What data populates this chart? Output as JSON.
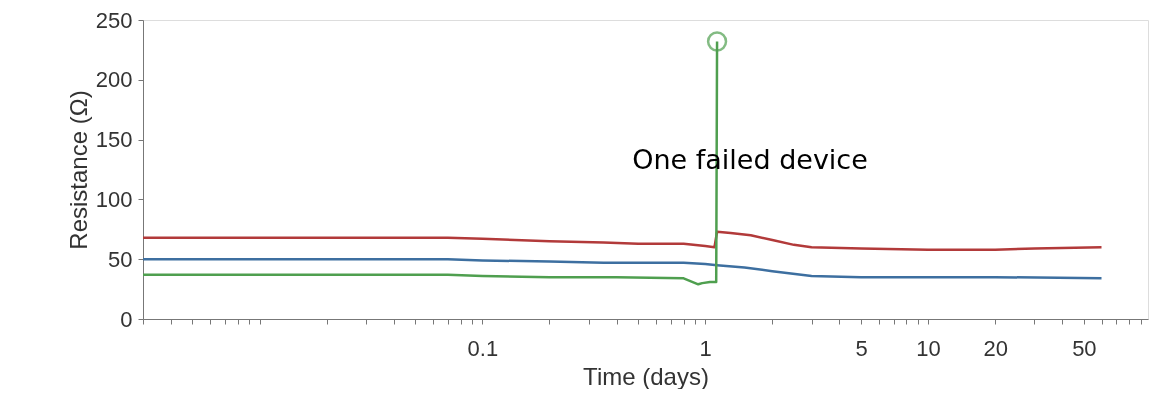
{
  "chart_data": {
    "type": "line",
    "xlabel": "Time (days)",
    "ylabel": "Resistance (Ω)",
    "log": "x",
    "grid": false,
    "legend": false,
    "marker": "none",
    "line_style": "solid",
    "xlim": [
      0.003,
      97
    ],
    "ylim": [
      0,
      250
    ],
    "xticks": [
      {
        "value": 0.003,
        "label": null
      },
      {
        "value": 0.004,
        "label": null
      },
      {
        "value": 0.005,
        "label": null
      },
      {
        "value": 0.006,
        "label": null
      },
      {
        "value": 0.007,
        "label": null
      },
      {
        "value": 0.008,
        "label": null
      },
      {
        "value": 0.009,
        "label": null
      },
      {
        "value": 0.01,
        "label": null
      },
      {
        "value": 0.02,
        "label": null
      },
      {
        "value": 0.03,
        "label": null
      },
      {
        "value": 0.04,
        "label": null
      },
      {
        "value": 0.05,
        "label": null
      },
      {
        "value": 0.06,
        "label": null
      },
      {
        "value": 0.07,
        "label": null
      },
      {
        "value": 0.08,
        "label": null
      },
      {
        "value": 0.09,
        "label": null
      },
      0.1,
      {
        "value": 0.2,
        "label": null
      },
      {
        "value": 0.3,
        "label": null
      },
      {
        "value": 0.4,
        "label": null
      },
      {
        "value": 0.5,
        "label": null
      },
      {
        "value": 0.6,
        "label": null
      },
      {
        "value": 0.7,
        "label": null
      },
      {
        "value": 0.8,
        "label": null
      },
      {
        "value": 0.9,
        "label": null
      },
      1,
      {
        "value": 2,
        "label": null
      },
      {
        "value": 3,
        "label": null
      },
      {
        "value": 4,
        "label": null
      },
      5,
      {
        "value": 6,
        "label": null
      },
      {
        "value": 7,
        "label": null
      },
      {
        "value": 8,
        "label": null
      },
      {
        "value": 9,
        "label": null
      },
      10,
      20,
      {
        "value": 30,
        "label": null
      },
      {
        "value": 40,
        "label": null
      },
      50,
      {
        "value": 60,
        "label": null
      },
      {
        "value": 70,
        "label": null
      },
      {
        "value": 80,
        "label": null
      },
      {
        "value": 90,
        "label": null
      }
    ],
    "yticks": [
      0,
      50,
      100,
      150,
      200,
      250
    ],
    "series": [
      {
        "color": "#b23a3a",
        "x": [
          0.003,
          0.07,
          0.1,
          0.2,
          0.35,
          0.5,
          0.8,
          1.0,
          1.1,
          1.13,
          1.3,
          1.6,
          2,
          2.5,
          3,
          5,
          10,
          20,
          30,
          60
        ],
        "values": [
          68,
          68,
          67,
          65,
          64,
          63,
          63,
          61,
          60,
          73,
          72,
          70,
          66,
          62,
          60,
          59,
          58,
          58,
          59,
          60
        ]
      },
      {
        "color": "#3d6fa0",
        "x": [
          0.003,
          0.07,
          0.1,
          0.2,
          0.35,
          0.5,
          0.8,
          1.0,
          1.13,
          1.5,
          2,
          3,
          5,
          10,
          20,
          60
        ],
        "values": [
          50,
          50,
          49,
          48,
          47,
          47,
          47,
          46,
          45,
          43,
          40,
          36,
          35,
          35,
          35,
          34
        ]
      },
      {
        "color": "#4f9f4f",
        "x": [
          0.003,
          0.07,
          0.1,
          0.2,
          0.4,
          0.8,
          0.93,
          0.97,
          1.05,
          1.12,
          1.13
        ],
        "values": [
          37,
          37,
          36,
          35,
          35,
          34,
          29,
          30,
          31,
          31,
          232
        ]
      }
    ],
    "annotations": [
      "One failed device"
    ]
  }
}
